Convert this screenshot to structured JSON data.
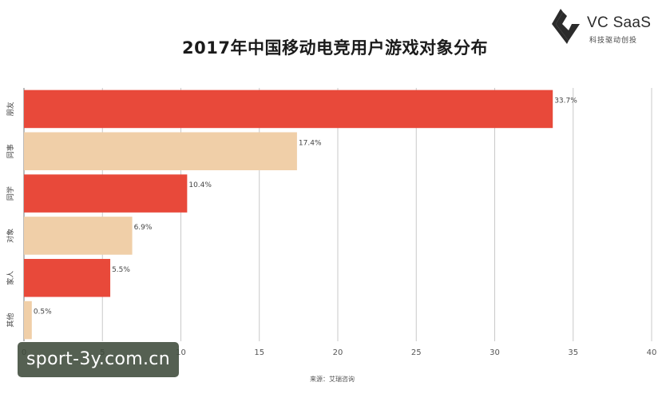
{
  "logo": {
    "name": "VC SaaS",
    "tagline": "科技驱动创投"
  },
  "watermark": "sport-3y.com.cn",
  "source": "来源：艾瑞咨询",
  "colors": {
    "primary": "#e8493a",
    "secondary": "#f0cfa8",
    "grid": "#c9c9c9",
    "logo": "#2b2b2b"
  },
  "chart_data": {
    "type": "bar",
    "orientation": "horizontal",
    "title": "2017年中国移动电竞用户游戏对象分布",
    "categories": [
      "朋友",
      "同事",
      "同学",
      "对象",
      "家人",
      "其他"
    ],
    "values": [
      33.7,
      17.4,
      10.4,
      6.9,
      5.5,
      0.5
    ],
    "data_labels": [
      "33.7%",
      "17.4%",
      "10.4%",
      "6.9%",
      "5.5%",
      "0.5%"
    ],
    "bar_colors": [
      "#e8493a",
      "#f0cfa8",
      "#e8493a",
      "#f0cfa8",
      "#e8493a",
      "#f0cfa8"
    ],
    "xlim": [
      0,
      40
    ],
    "xticks": [
      0,
      5,
      10,
      15,
      20,
      25,
      30,
      35,
      40
    ],
    "grid": "vertical",
    "legend": "none"
  }
}
